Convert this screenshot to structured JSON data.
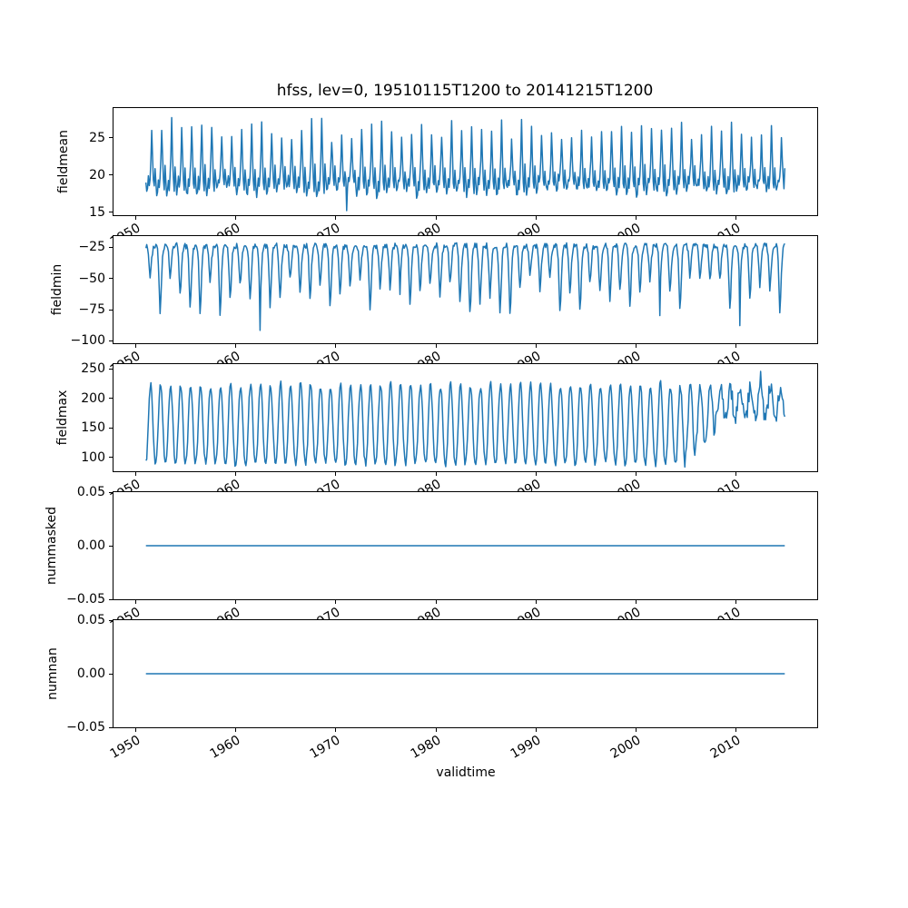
{
  "chart_data": {
    "type": "line",
    "title": "hfss, lev=0, 19510115T1200 to 20141215T1200",
    "xlabel": "validtime",
    "line_color": "#1f77b4",
    "axis_color": "#000000",
    "background_color": "#ffffff",
    "grid": false,
    "legend": false,
    "n_subplots": 5,
    "shared_x": true,
    "xlim": [
      1947.8,
      2018.2
    ],
    "xticks": [
      {
        "v": 1950,
        "label": "1950"
      },
      {
        "v": 1960,
        "label": "1960"
      },
      {
        "v": 1970,
        "label": "1970"
      },
      {
        "v": 1980,
        "label": "1980"
      },
      {
        "v": 1990,
        "label": "1990"
      },
      {
        "v": 2000,
        "label": "2000"
      },
      {
        "v": 2010,
        "label": "2010"
      }
    ],
    "xtick_rotation_deg": 30,
    "x_start": 1951.042,
    "x_end": 2014.958,
    "samples_per_year": 12,
    "subplots": [
      {
        "ylabel": "fieldmean",
        "ylim": [
          14.6,
          29.0
        ],
        "yticks": [
          {
            "v": 15,
            "label": "15"
          },
          {
            "v": 20,
            "label": "20"
          },
          {
            "v": 25,
            "label": "25"
          }
        ],
        "summary": {
          "period": "annual",
          "mean": 20.5,
          "typical_peak": [
            24.5,
            27.5
          ],
          "typical_trough": [
            16.9,
            18.3
          ],
          "abs_min": 15.0,
          "abs_max": 28.3
        },
        "signal": {
          "kind": "seasonal",
          "seed": 11,
          "base": 20.2,
          "climatology": [
            19.0,
            17.8,
            18.2,
            19.6,
            18.6,
            19.8,
            22.0,
            25.7,
            22.5,
            19.4,
            18.3,
            20.9
          ],
          "amp_scale": [
            0.78,
            1.28
          ],
          "noise": 0.45,
          "clip": [
            15.0,
            28.4
          ],
          "specials": [
            {
              "year": 1971,
              "month": 1,
              "delta": -2.7
            },
            {
              "year": 1953,
              "month": 7,
              "delta": 1.2
            },
            {
              "year": 1981,
              "month": 7,
              "delta": 1.2
            }
          ]
        }
      },
      {
        "ylabel": "fieldmin",
        "ylim": [
          -101.9,
          -16.1
        ],
        "yticks": [
          {
            "v": -100,
            "label": "−100"
          },
          {
            "v": -75,
            "label": "−75"
          },
          {
            "v": -50,
            "label": "−50"
          },
          {
            "v": -25,
            "label": "−25"
          }
        ],
        "summary": {
          "period": "annual",
          "plateau": [
            -30,
            -22
          ],
          "typical_dip": [
            -50,
            -80
          ],
          "abs_min": -99,
          "abs_max": -20
        },
        "signal": {
          "kind": "seasonal",
          "seed": 23,
          "base": -23.5,
          "climatology": [
            -24.0,
            -23.5,
            -26.0,
            -33.0,
            -48.0,
            -62.0,
            -54.0,
            -40.0,
            -31.0,
            -26.0,
            -24.5,
            -23.8
          ],
          "amp_scale": [
            0.6,
            1.45
          ],
          "noise": 2.2,
          "clip": [
            -99.0,
            -20.0
          ],
          "specials": [
            {
              "year": 1962,
              "month": 5,
              "delta": -26
            },
            {
              "year": 1976,
              "month": 5,
              "delta": -15
            },
            {
              "year": 2002,
              "month": 5,
              "delta": -22
            },
            {
              "year": 2010,
              "month": 5,
              "delta": -33
            }
          ]
        }
      },
      {
        "ylabel": "fieldmax",
        "ylim": [
          76.8,
          258.2
        ],
        "yticks": [
          {
            "v": 100,
            "label": "100"
          },
          {
            "v": 150,
            "label": "150"
          },
          {
            "v": 200,
            "label": "200"
          },
          {
            "v": 250,
            "label": "250"
          }
        ],
        "summary": {
          "period": "annual",
          "era1_range": [
            88,
            225
          ],
          "era1_until": 2004,
          "transition": [
            2004,
            2008
          ],
          "era2_range": [
            150,
            250
          ],
          "abs_max": 252
        },
        "signal": {
          "kind": "era",
          "seed": 37,
          "shape": [
            -1.0,
            -0.82,
            -0.45,
            0.12,
            0.65,
            0.95,
            1.0,
            0.78,
            0.3,
            -0.3,
            -0.75,
            -0.97
          ],
          "eras": [
            {
              "from": 1951,
              "until": 2004,
              "bottom": 90,
              "top": 222,
              "shape_scale": 1.0,
              "noise": 5
            },
            {
              "from": 2004,
              "until": 2008,
              "bottom_ramp": [
                90,
                152
              ],
              "top": 220,
              "shape_scale": 1.0,
              "noise": 8
            },
            {
              "from": 2008,
              "until": 2015,
              "bottom": 150,
              "top": 235,
              "shape_scale": 0.55,
              "noise": 14
            }
          ],
          "clip": [
            84.0,
            253.0
          ],
          "specials": [
            {
              "year": 2012,
              "month": 6,
              "delta": 40
            }
          ]
        }
      },
      {
        "ylabel": "nummasked",
        "ylim": [
          -0.05,
          0.05
        ],
        "yticks": [
          {
            "v": -0.05,
            "label": "−0.05"
          },
          {
            "v": 0,
            "label": "0.00"
          },
          {
            "v": 0.05,
            "label": "0.05"
          }
        ],
        "summary": {
          "constant_value": 0.0
        },
        "signal": {
          "kind": "constant",
          "value": 0.0
        }
      },
      {
        "ylabel": "numnan",
        "ylim": [
          -0.05,
          0.05
        ],
        "yticks": [
          {
            "v": -0.05,
            "label": "−0.05"
          },
          {
            "v": 0,
            "label": "0.00"
          },
          {
            "v": 0.05,
            "label": "0.05"
          }
        ],
        "summary": {
          "constant_value": 0.0
        },
        "signal": {
          "kind": "constant",
          "value": 0.0
        }
      }
    ]
  }
}
